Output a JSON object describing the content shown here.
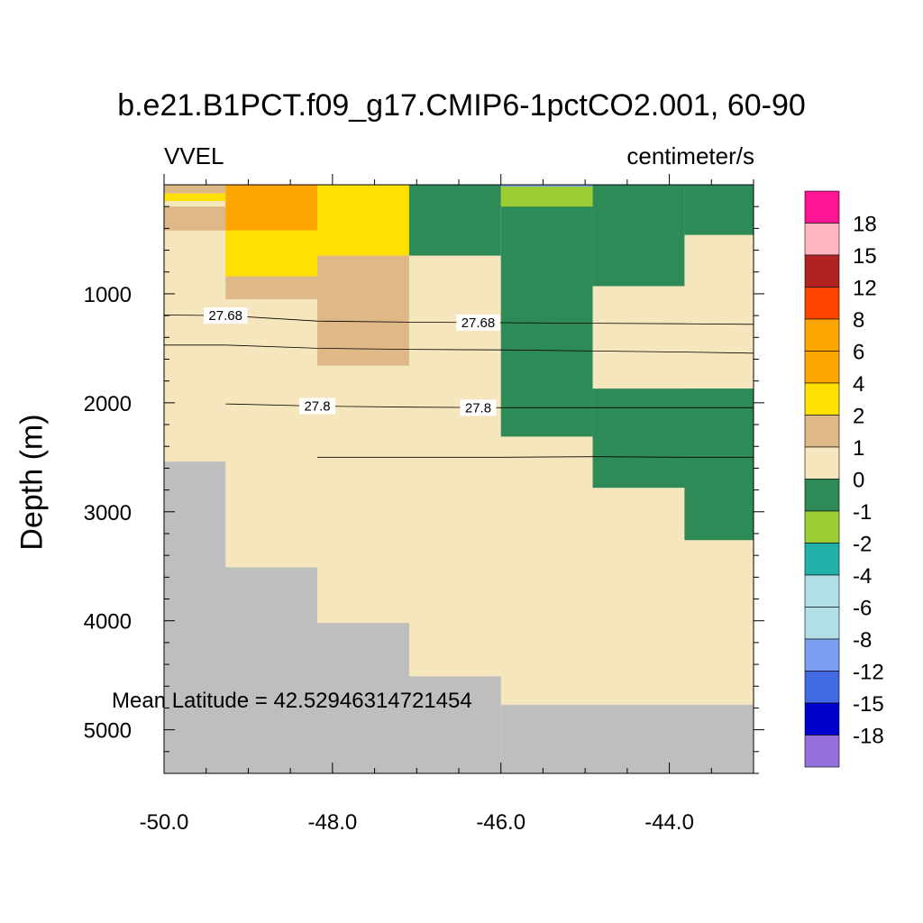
{
  "chart_data": {
    "type": "heatmap",
    "title": "b.e21.B1PCT.f09_g17.CMIP6-1pctCO2.001, 60-90",
    "left_subtitle": "VVEL",
    "right_subtitle": "centimeter/s",
    "xlabel": "",
    "ylabel": "Depth (m)",
    "annotation": "Mean Latitude = 42.52946314721454",
    "xlim": [
      -50.0,
      -43.0
    ],
    "ylim": [
      5400,
      0
    ],
    "x_ticks": [
      -50.0,
      -48.0,
      -46.0,
      -44.0
    ],
    "x_tick_labels": [
      "-50.0",
      "-48.0",
      "-46.0",
      "-44.0"
    ],
    "y_ticks": [
      1000,
      2000,
      3000,
      4000,
      5000
    ],
    "y_tick_labels": [
      "1000",
      "2000",
      "3000",
      "4000",
      "5000"
    ],
    "colorbar": {
      "labels": [
        "18",
        "15",
        "12",
        "8",
        "6",
        "4",
        "2",
        "1",
        "0",
        "-1",
        "-2",
        "-4",
        "-6",
        "-8",
        "-12",
        "-15",
        "-18"
      ],
      "colors": [
        "#ff1493",
        "#ffb6c1",
        "#b22222",
        "#ff4500",
        "#ffa500",
        "#ffa500",
        "#ffe000",
        "#deb887",
        "#f5e6be",
        "#2e8b57",
        "#9acd32",
        "#20b2aa",
        "#b0e0e6",
        "#b0e0e6",
        "#7b9ef0",
        "#4169e1",
        "#0000cd",
        "#9370db"
      ]
    },
    "land_color": "#bebebe",
    "cells": [
      {
        "x": [
          -50.0,
          -49.27
        ],
        "y": [
          0,
          80
        ],
        "color": "#deb887"
      },
      {
        "x": [
          -50.0,
          -49.27
        ],
        "y": [
          80,
          150
        ],
        "color": "#ffe000"
      },
      {
        "x": [
          -50.0,
          -49.27
        ],
        "y": [
          150,
          200
        ],
        "color": "#f5e6be"
      },
      {
        "x": [
          -50.0,
          -49.27
        ],
        "y": [
          200,
          420
        ],
        "color": "#deb887"
      },
      {
        "x": [
          -49.27,
          -48.18
        ],
        "y": [
          0,
          420
        ],
        "color": "#ffa500"
      },
      {
        "x": [
          -49.27,
          -48.18
        ],
        "y": [
          420,
          840
        ],
        "color": "#ffe000"
      },
      {
        "x": [
          -49.27,
          -48.18
        ],
        "y": [
          840,
          1050
        ],
        "color": "#deb887"
      },
      {
        "x": [
          -48.18,
          -47.09
        ],
        "y": [
          0,
          650
        ],
        "color": "#ffe000"
      },
      {
        "x": [
          -48.18,
          -47.09
        ],
        "y": [
          650,
          1660
        ],
        "color": "#deb887"
      },
      {
        "x": [
          -47.09,
          -46.0
        ],
        "y": [
          0,
          650
        ],
        "color": "#2e8b57"
      },
      {
        "x": [
          -46.0,
          -44.91
        ],
        "y": [
          0,
          2310
        ],
        "color": "#2e8b57"
      },
      {
        "x": [
          -46.0,
          -44.91
        ],
        "y": [
          0,
          200
        ],
        "color": "#9acd32"
      },
      {
        "x": [
          -44.91,
          -43.82
        ],
        "y": [
          0,
          930
        ],
        "color": "#2e8b57"
      },
      {
        "x": [
          -44.91,
          -43.0
        ],
        "y": [
          1870,
          2780
        ],
        "color": "#2e8b57"
      },
      {
        "x": [
          -43.82,
          -43.0
        ],
        "y": [
          0,
          460
        ],
        "color": "#2e8b57"
      },
      {
        "x": [
          -43.82,
          -43.0
        ],
        "y": [
          1870,
          3260
        ],
        "color": "#2e8b57"
      }
    ],
    "land_columns": [
      {
        "x": [
          -50.0,
          -49.27
        ],
        "top": 2540
      },
      {
        "x": [
          -49.27,
          -48.18
        ],
        "top": 3510
      },
      {
        "x": [
          -48.18,
          -47.09
        ],
        "top": 4020
      },
      {
        "x": [
          -47.09,
          -46.0
        ],
        "top": 4510
      },
      {
        "x": [
          -46.0,
          -43.0
        ],
        "top": 4770
      }
    ],
    "contours": [
      {
        "label": "27.68",
        "points": [
          [
            -50.0,
            1195
          ],
          [
            -49.27,
            1200
          ],
          [
            -48.18,
            1250
          ],
          [
            -47.09,
            1260
          ],
          [
            -46.0,
            1265
          ],
          [
            -44.91,
            1270
          ],
          [
            -43.82,
            1275
          ],
          [
            -43.0,
            1280
          ]
        ]
      },
      {
        "label": "",
        "points": [
          [
            -50.0,
            1470
          ],
          [
            -49.27,
            1470
          ],
          [
            -48.18,
            1500
          ],
          [
            -47.09,
            1510
          ],
          [
            -46.0,
            1515
          ],
          [
            -44.91,
            1525
          ],
          [
            -43.82,
            1535
          ],
          [
            -43.0,
            1545
          ]
        ]
      },
      {
        "label": "27.8",
        "points": [
          [
            -49.27,
            2010
          ],
          [
            -48.18,
            2030
          ],
          [
            -47.09,
            2040
          ],
          [
            -46.0,
            2045
          ],
          [
            -44.91,
            2045
          ],
          [
            -43.82,
            2045
          ],
          [
            -43.0,
            2045
          ]
        ]
      },
      {
        "label": "",
        "points": [
          [
            -48.18,
            2500
          ],
          [
            -47.09,
            2500
          ],
          [
            -46.0,
            2500
          ],
          [
            -44.91,
            2495
          ],
          [
            -43.82,
            2500
          ],
          [
            -43.0,
            2500
          ]
        ]
      }
    ],
    "contour_labels": [
      {
        "text": "27.68",
        "x": -49.27,
        "y": 1200
      },
      {
        "text": "27.68",
        "x": -46.27,
        "y": 1265
      },
      {
        "text": "27.8",
        "x": -48.18,
        "y": 2030
      },
      {
        "text": "27.8",
        "x": -46.27,
        "y": 2045
      }
    ]
  }
}
